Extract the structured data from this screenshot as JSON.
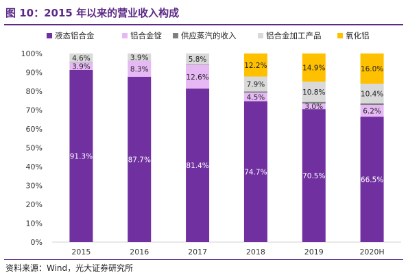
{
  "title": "图 10：2015 年以来的营业收入构成",
  "source": "资料来源：Wind，光大证券研究所",
  "colors": {
    "series": [
      "#7030a0",
      "#e6b9f5",
      "#7f7f7f",
      "#d9d9d9",
      "#ffc000"
    ],
    "axis": "#d0d0d0",
    "text": "#333333"
  },
  "chart_data": {
    "type": "bar",
    "stacked": true,
    "percent": true,
    "categories": [
      "2015",
      "2016",
      "2017",
      "2018",
      "2019",
      "2020H"
    ],
    "series": [
      {
        "name": "液态铝合金",
        "values": [
          91.3,
          87.7,
          81.4,
          74.7,
          70.5,
          66.5
        ]
      },
      {
        "name": "铝合金锭",
        "values": [
          3.9,
          8.3,
          12.6,
          4.5,
          3.0,
          6.2
        ]
      },
      {
        "name": "供应蒸汽的收入",
        "values": [
          0.2,
          0.1,
          0.2,
          0.7,
          0.8,
          0.9
        ]
      },
      {
        "name": "铝合金加工产品",
        "values": [
          4.6,
          3.9,
          5.8,
          7.9,
          10.8,
          10.4
        ]
      },
      {
        "name": "氧化铝",
        "values": [
          0,
          0,
          0,
          12.2,
          14.9,
          16.0
        ]
      }
    ],
    "labels": [
      [
        "91.3%",
        "87.7%",
        "81.4%",
        "74.7%",
        "70.5%",
        "66.5%"
      ],
      [
        "3.9%",
        "8.3%",
        "12.6%",
        "4.5%",
        "3.0%",
        "6.2%"
      ],
      [
        "",
        "",
        "",
        "",
        "",
        ""
      ],
      [
        "4.6%",
        "3.9%",
        "5.8%",
        "7.9%",
        "10.8%",
        "10.4%"
      ],
      [
        "",
        "",
        "",
        "12.2%",
        "14.9%",
        "16.0%"
      ]
    ],
    "ylim": [
      0,
      100
    ],
    "yticks": [
      "0%",
      "10%",
      "20%",
      "30%",
      "40%",
      "50%",
      "60%",
      "70%",
      "80%",
      "90%",
      "100%"
    ],
    "legend_position": "top",
    "grid": false
  }
}
